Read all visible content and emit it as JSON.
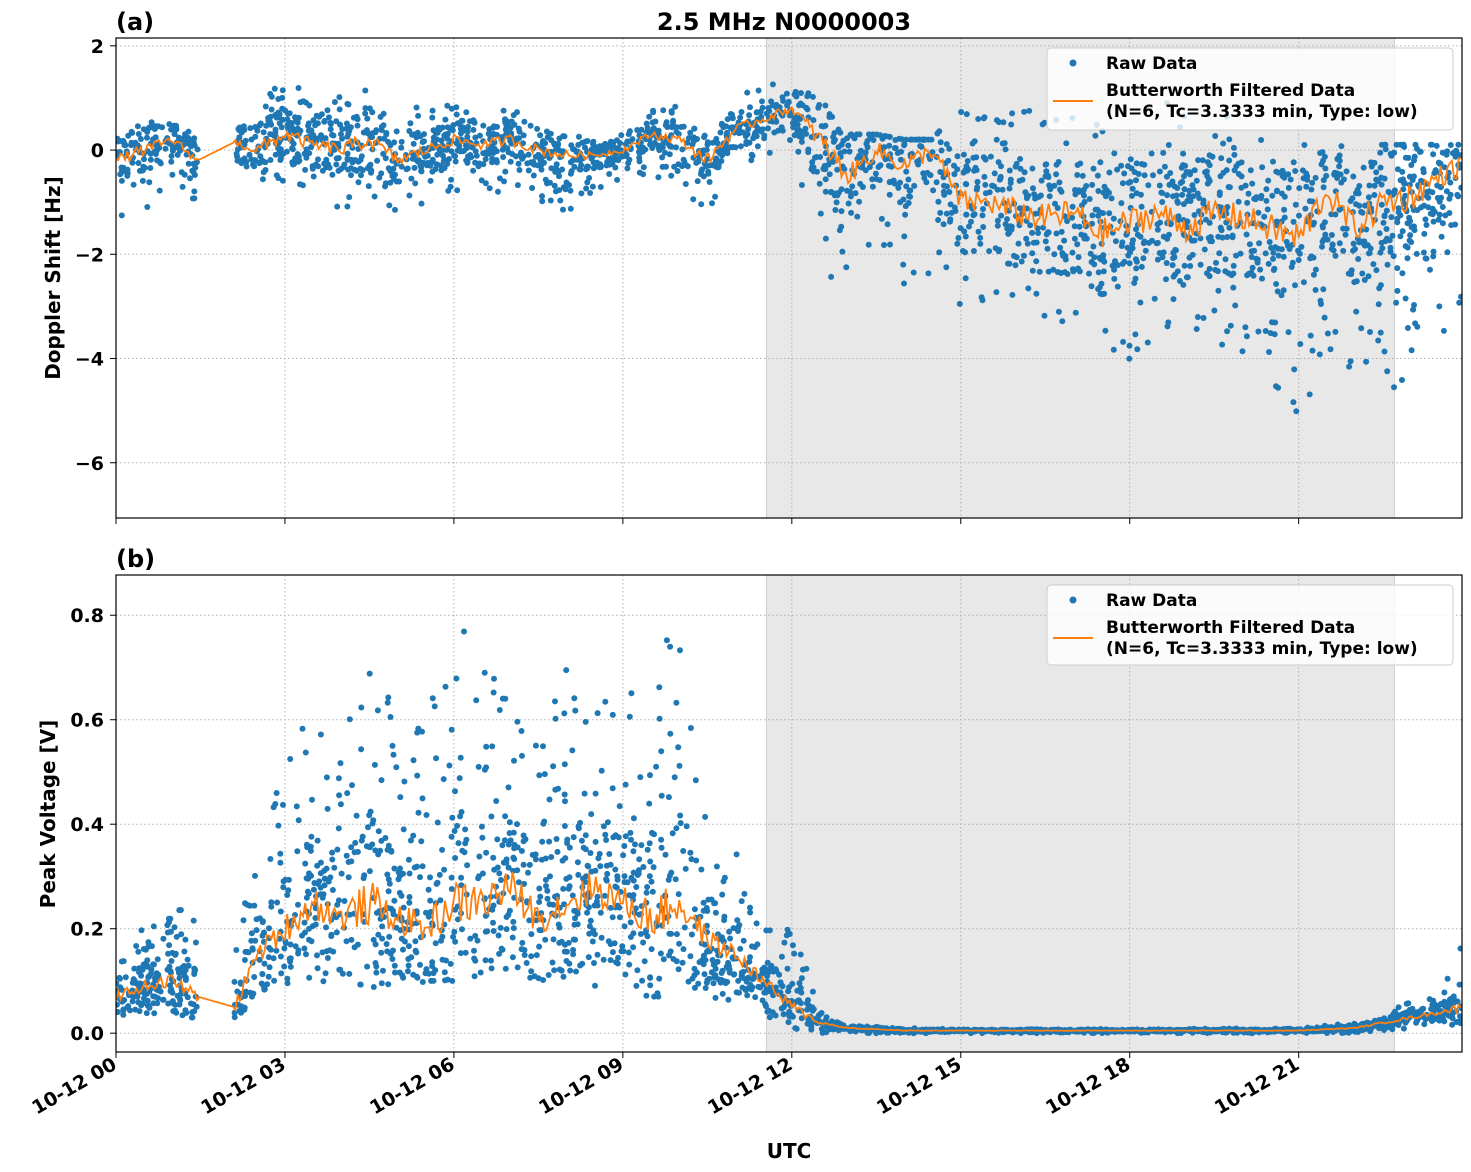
{
  "title": "2.5 MHz N0000003",
  "colors": {
    "raw": "#1f77b4",
    "filtered": "#ff7f0e",
    "shade": "#e8e8e8",
    "grid": "#b0b0b0"
  },
  "legend": {
    "raw": "Raw Data",
    "filtered_line1": "Butterworth Filtered Data",
    "filtered_line2": "(N=6, Tc=3.3333 min, Type: low)",
    "placement": "top-right"
  },
  "xlabel": "UTC",
  "xticks": [
    "10-12 00",
    "10-12 03",
    "10-12 06",
    "10-12 09",
    "10-12 12",
    "10-12 15",
    "10-12 18",
    "10-12 21"
  ],
  "chart_data": [
    {
      "type": "scatter",
      "panel": "(a)",
      "ylabel": "Doppler Shift [Hz]",
      "x_unit": "hours UTC on 10-12",
      "xlim": [
        0,
        23.9
      ],
      "ylim": [
        -7.06,
        2.15
      ],
      "yticks": [
        2,
        0,
        -2,
        -4,
        -6
      ],
      "ytick_labels": [
        "2",
        "0",
        "−2",
        "−4",
        "−6"
      ],
      "grid": true,
      "shaded_span": [
        11.55,
        22.7
      ],
      "series": [
        {
          "name": "Raw Data",
          "kind": "envelope",
          "x": [
            0,
            0.5,
            1,
            1.45,
            2.1,
            2.5,
            3,
            3.5,
            4,
            4.5,
            5,
            5.5,
            6,
            6.5,
            7,
            7.5,
            8,
            8.5,
            9,
            9.5,
            10,
            10.5,
            11,
            11.5,
            12,
            12.5,
            13,
            13.5,
            14,
            14.5,
            15,
            15.5,
            16,
            16.5,
            17,
            17.5,
            18,
            18.5,
            19,
            19.5,
            20,
            20.5,
            21,
            21.5,
            22,
            22.5,
            23,
            23.5,
            23.9
          ],
          "lo": [
            -1.5,
            -1.2,
            -0.8,
            -1.0,
            -1.0,
            -0.9,
            -0.8,
            -1.0,
            -1.2,
            -1.3,
            -1.2,
            -1.0,
            -0.8,
            -0.8,
            -0.9,
            -1.1,
            -1.2,
            -0.8,
            -0.6,
            -0.5,
            -0.6,
            -1.5,
            -0.4,
            -0.1,
            0.1,
            -2.5,
            -3.0,
            -2.5,
            -3.0,
            -2.5,
            -3.0,
            -3.0,
            -3.2,
            -3.5,
            -3.7,
            -4.0,
            -4.2,
            -3.5,
            -3.5,
            -3.8,
            -4.0,
            -4.5,
            -5.5,
            -4.0,
            -4.5,
            -5.0,
            -4.5,
            -3.5,
            -3.4
          ],
          "hi": [
            0.3,
            0.6,
            0.5,
            0.3,
            0.3,
            1.0,
            1.6,
            0.9,
            1.1,
            1.3,
            0.9,
            0.8,
            0.9,
            0.8,
            0.8,
            0.5,
            0.3,
            0.2,
            0.4,
            0.8,
            0.9,
            0.4,
            1.2,
            1.3,
            1.4,
            1.0,
            0.3,
            0.3,
            0.2,
            0.2,
            0.9,
            0.8,
            1.2,
            0.9,
            0.9,
            0.7,
            0.9,
            0.9,
            1.3,
            0.9,
            0.4,
            0.1,
            0.1,
            0.1,
            0.1,
            0.1,
            0.1,
            0.1,
            0.1
          ]
        },
        {
          "name": "Butterworth Filtered Data (N=6, Tc=3.3333 min, Type: low)",
          "kind": "line",
          "x": [
            0,
            0.5,
            1,
            1.45,
            2.1,
            2.5,
            3,
            3.5,
            4,
            4.5,
            5,
            5.5,
            6,
            6.5,
            7,
            7.5,
            8,
            8.5,
            9,
            9.5,
            10,
            10.5,
            11,
            11.5,
            12,
            12.5,
            13,
            13.5,
            14,
            14.5,
            15,
            15.5,
            16,
            16.5,
            17,
            17.5,
            18,
            18.5,
            19,
            19.5,
            20,
            20.5,
            21,
            21.5,
            22,
            22.5,
            23,
            23.5,
            23.9
          ],
          "y": [
            -0.2,
            0.0,
            0.2,
            -0.2,
            0.15,
            0.0,
            0.3,
            0.1,
            0.0,
            0.2,
            -0.2,
            0.0,
            0.2,
            0.1,
            0.2,
            0.0,
            -0.1,
            -0.1,
            0.0,
            0.3,
            0.2,
            -0.2,
            0.4,
            0.6,
            0.8,
            0.2,
            -0.5,
            0.0,
            -0.3,
            0.0,
            -1.0,
            -1.0,
            -1.2,
            -1.3,
            -1.2,
            -1.6,
            -1.4,
            -1.2,
            -1.5,
            -1.2,
            -1.3,
            -1.5,
            -1.7,
            -0.8,
            -1.5,
            -1.0,
            -0.9,
            -0.5,
            -0.3
          ]
        }
      ]
    },
    {
      "type": "scatter",
      "panel": "(b)",
      "ylabel": "Peak Voltage [V]",
      "x_unit": "hours UTC on 10-12",
      "xlim": [
        0,
        23.9
      ],
      "ylim": [
        -0.036,
        0.877
      ],
      "yticks": [
        0.0,
        0.2,
        0.4,
        0.6,
        0.8
      ],
      "ytick_labels": [
        "0.0",
        "0.2",
        "0.4",
        "0.6",
        "0.8"
      ],
      "grid": true,
      "shaded_span": [
        11.55,
        22.7
      ],
      "series": [
        {
          "name": "Raw Data",
          "kind": "envelope",
          "x": [
            0,
            0.5,
            1,
            1.45,
            2.1,
            2.5,
            3,
            3.5,
            4,
            4.5,
            5,
            5.5,
            6,
            6.5,
            7,
            7.5,
            8,
            8.5,
            9,
            9.5,
            10,
            10.5,
            11,
            11.5,
            12,
            12.5,
            13,
            14,
            15,
            18,
            21,
            22,
            22.5,
            23,
            23.5,
            23.9
          ],
          "lo": [
            0.02,
            0.03,
            0.03,
            0.03,
            0.03,
            0.06,
            0.09,
            0.09,
            0.1,
            0.09,
            0.08,
            0.1,
            0.1,
            0.1,
            0.12,
            0.1,
            0.1,
            0.09,
            0.08,
            0.07,
            0.07,
            0.06,
            0.06,
            0.03,
            0.01,
            0.0,
            0.0,
            0.0,
            0.0,
            0.0,
            0.0,
            0.0,
            0.005,
            0.01,
            0.01,
            0.02
          ],
          "hi": [
            0.19,
            0.2,
            0.26,
            0.23,
            0.25,
            0.35,
            0.55,
            0.62,
            0.55,
            0.83,
            0.56,
            0.6,
            0.78,
            0.75,
            0.71,
            0.6,
            0.71,
            0.67,
            0.62,
            0.73,
            0.79,
            0.4,
            0.35,
            0.2,
            0.21,
            0.05,
            0.015,
            0.01,
            0.008,
            0.008,
            0.01,
            0.02,
            0.04,
            0.06,
            0.08,
            0.17
          ]
        },
        {
          "name": "Butterworth Filtered Data (N=6, Tc=3.3333 min, Type: low)",
          "kind": "line",
          "x": [
            0,
            0.5,
            1,
            1.45,
            2.1,
            2.5,
            3,
            3.5,
            4,
            4.5,
            5,
            5.5,
            6,
            6.5,
            7,
            7.5,
            8,
            8.5,
            9,
            9.5,
            10,
            10.5,
            11,
            11.5,
            12,
            12.5,
            13,
            14,
            15,
            18,
            21,
            22,
            22.5,
            23,
            23.5,
            23.9
          ],
          "y": [
            0.07,
            0.09,
            0.1,
            0.07,
            0.05,
            0.15,
            0.2,
            0.25,
            0.22,
            0.25,
            0.22,
            0.2,
            0.25,
            0.25,
            0.28,
            0.22,
            0.25,
            0.28,
            0.25,
            0.22,
            0.25,
            0.18,
            0.15,
            0.1,
            0.05,
            0.02,
            0.01,
            0.005,
            0.005,
            0.005,
            0.005,
            0.01,
            0.02,
            0.03,
            0.04,
            0.05
          ]
        }
      ]
    }
  ]
}
